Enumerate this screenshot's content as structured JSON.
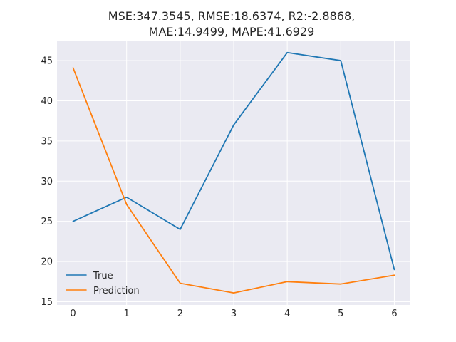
{
  "chart_data": {
    "type": "line",
    "title": [
      "MSE:347.3545, RMSE:18.6374, R2:-2.8868,",
      "MAE:14.9499, MAPE:41.6929"
    ],
    "xlabel": "",
    "ylabel": "",
    "x": [
      0,
      1,
      2,
      3,
      4,
      5,
      6
    ],
    "xlim": [
      -0.3,
      6.3
    ],
    "ylim": [
      14.6,
      47.4
    ],
    "xticks": [
      "0",
      "1",
      "2",
      "3",
      "4",
      "5",
      "6"
    ],
    "yticks": [
      "15",
      "20",
      "25",
      "30",
      "35",
      "40",
      "45"
    ],
    "grid": true,
    "legend_position": "lower-left",
    "series": [
      {
        "name": "True",
        "color": "#1f77b4",
        "values": [
          25,
          28,
          24,
          37,
          46,
          45,
          19
        ]
      },
      {
        "name": "Prediction",
        "color": "#ff7f0e",
        "values": [
          44.1,
          27.1,
          17.3,
          16.1,
          17.5,
          17.2,
          18.3
        ]
      }
    ]
  }
}
